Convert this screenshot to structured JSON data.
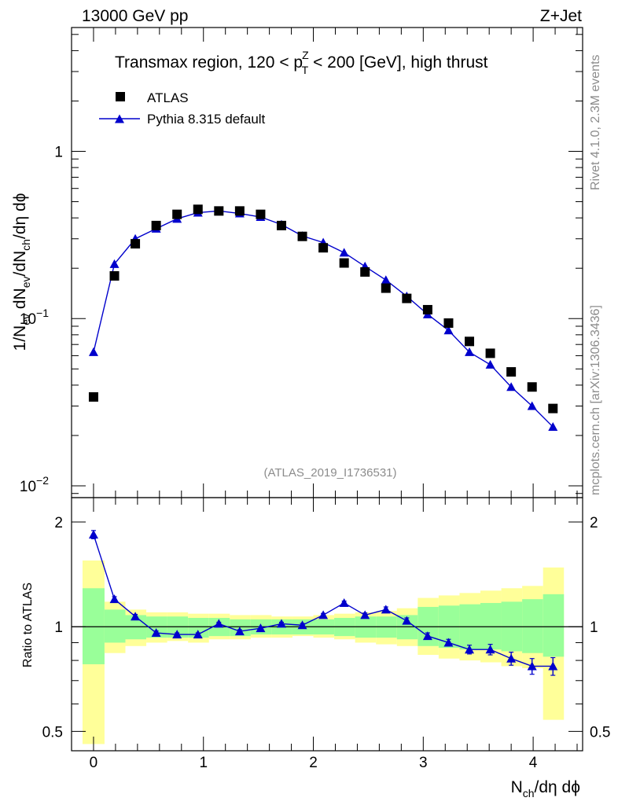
{
  "header": {
    "left": "13000 GeV pp",
    "right": "Z+Jet"
  },
  "side_labels": {
    "rivet": "Rivet 4.1.0,  2.3M events",
    "mcplots": "mcplots.cern.ch [arXiv:1306.3436]"
  },
  "colors": {
    "mc": "#0000cc",
    "data": "#000000",
    "band_inner": "#99ff99",
    "band_outer": "#ffff99",
    "watermark": "#8c8c8c"
  },
  "chart_data": [
    {
      "type": "scatter",
      "panel": "main",
      "title_parts": {
        "prefix": "Transmax region, 120 < p",
        "sup": "Z",
        "sub": "T",
        "suffix": " < 200 [GeV], high thrust"
      },
      "ylabel_parts": [
        "1/N",
        "ev",
        " dN",
        "ev",
        "/dN",
        "ch",
        "/dη dϕ"
      ],
      "yscale": "log",
      "ylim": [
        0.0085,
        5.5
      ],
      "xlim": [
        -0.2,
        4.45
      ],
      "y_ticks": [
        {
          "value": 1,
          "base": "1",
          "exp": ""
        },
        {
          "value": 0.1,
          "base": "10",
          "exp": "−1"
        },
        {
          "value": 0.01,
          "base": "10",
          "exp": "−2"
        }
      ],
      "watermark": "(ATLAS_2019_I1736531)",
      "legend": [
        {
          "label": "ATLAS",
          "marker": "square"
        },
        {
          "label": "Pythia 8.315 default",
          "marker": "triangle"
        }
      ],
      "series": [
        {
          "name": "ATLAS",
          "x": [
            0,
            0.19,
            0.38,
            0.57,
            0.76,
            0.95,
            1.14,
            1.33,
            1.52,
            1.71,
            1.9,
            2.09,
            2.28,
            2.47,
            2.66,
            2.85,
            3.04,
            3.23,
            3.42,
            3.61,
            3.8,
            3.99,
            4.18
          ],
          "y": [
            0.034,
            0.18,
            0.28,
            0.36,
            0.42,
            0.45,
            0.44,
            0.44,
            0.42,
            0.36,
            0.31,
            0.265,
            0.215,
            0.19,
            0.152,
            0.132,
            0.113,
            0.094,
            0.073,
            0.062,
            0.048,
            0.039,
            0.029
          ]
        },
        {
          "name": "Pythia 8.315 default",
          "x": [
            0,
            0.19,
            0.38,
            0.57,
            0.76,
            0.95,
            1.14,
            1.33,
            1.52,
            1.71,
            1.9,
            2.09,
            2.28,
            2.47,
            2.66,
            2.85,
            3.04,
            3.23,
            3.42,
            3.61,
            3.8,
            3.99,
            4.18
          ],
          "y": [
            0.063,
            0.212,
            0.3,
            0.345,
            0.395,
            0.43,
            0.44,
            0.425,
            0.405,
            0.365,
            0.312,
            0.285,
            0.248,
            0.205,
            0.17,
            0.136,
            0.106,
            0.085,
            0.063,
            0.053,
            0.039,
            0.03,
            0.0225
          ]
        }
      ]
    },
    {
      "type": "line",
      "panel": "ratio",
      "ylabel": "Ratio to ATLAS",
      "yscale": "log",
      "ylim": [
        0.44,
        2.35
      ],
      "xlim": [
        -0.2,
        4.45
      ],
      "y_ticks": [
        {
          "value": 2,
          "label": "2"
        },
        {
          "value": 1,
          "label": "1"
        },
        {
          "value": 0.5,
          "label": "0.5"
        }
      ],
      "x_ticks": [
        {
          "value": 0,
          "label": "0"
        },
        {
          "value": 1,
          "label": "1"
        },
        {
          "value": 2,
          "label": "2"
        },
        {
          "value": 3,
          "label": "3"
        },
        {
          "value": 4,
          "label": "4"
        }
      ],
      "xlabel_parts": [
        "N",
        "ch",
        "/dη dϕ"
      ],
      "bin_edges": [
        -0.1,
        0.1,
        0.29,
        0.48,
        0.67,
        0.86,
        1.05,
        1.24,
        1.43,
        1.62,
        1.81,
        2.0,
        2.19,
        2.38,
        2.57,
        2.76,
        2.95,
        3.14,
        3.33,
        3.52,
        3.71,
        3.9,
        4.09,
        4.28
      ],
      "band_inner": {
        "lo": [
          0.78,
          0.9,
          0.92,
          0.93,
          0.93,
          0.93,
          0.94,
          0.94,
          0.95,
          0.95,
          0.95,
          0.95,
          0.94,
          0.93,
          0.93,
          0.92,
          0.88,
          0.87,
          0.86,
          0.86,
          0.85,
          0.84,
          0.82
        ],
        "hi": [
          1.29,
          1.12,
          1.08,
          1.07,
          1.07,
          1.06,
          1.06,
          1.05,
          1.05,
          1.05,
          1.05,
          1.05,
          1.06,
          1.07,
          1.07,
          1.08,
          1.14,
          1.15,
          1.16,
          1.17,
          1.18,
          1.2,
          1.24
        ]
      },
      "band_outer": {
        "lo": [
          0.46,
          0.84,
          0.88,
          0.9,
          0.91,
          0.9,
          0.92,
          0.92,
          0.93,
          0.93,
          0.94,
          0.93,
          0.92,
          0.9,
          0.89,
          0.88,
          0.83,
          0.81,
          0.8,
          0.79,
          0.77,
          0.76,
          0.54
        ],
        "hi": [
          1.55,
          1.18,
          1.12,
          1.1,
          1.1,
          1.09,
          1.09,
          1.08,
          1.08,
          1.07,
          1.07,
          1.08,
          1.09,
          1.1,
          1.11,
          1.13,
          1.21,
          1.23,
          1.25,
          1.27,
          1.29,
          1.31,
          1.48
        ]
      },
      "series": [
        {
          "name": "Pythia 8.315 default / ATLAS",
          "x": [
            0,
            0.19,
            0.38,
            0.57,
            0.76,
            0.95,
            1.14,
            1.33,
            1.52,
            1.71,
            1.9,
            2.09,
            2.28,
            2.47,
            2.66,
            2.85,
            3.04,
            3.23,
            3.42,
            3.61,
            3.8,
            3.99,
            4.18
          ],
          "y": [
            1.84,
            1.2,
            1.07,
            0.96,
            0.95,
            0.95,
            1.02,
            0.97,
            0.99,
            1.02,
            1.01,
            1.08,
            1.17,
            1.08,
            1.12,
            1.04,
            0.94,
            0.9,
            0.86,
            0.86,
            0.81,
            0.77,
            0.77
          ],
          "err": [
            0.05,
            0.02,
            0.015,
            0.012,
            0.01,
            0.01,
            0.01,
            0.01,
            0.01,
            0.01,
            0.012,
            0.012,
            0.015,
            0.015,
            0.02,
            0.02,
            0.02,
            0.02,
            0.025,
            0.03,
            0.035,
            0.04,
            0.045
          ]
        }
      ]
    }
  ]
}
